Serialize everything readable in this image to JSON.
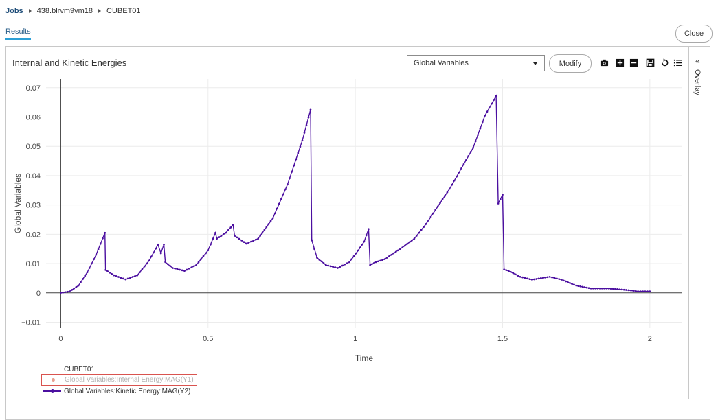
{
  "breadcrumb": {
    "jobs": "Jobs",
    "job_id": "438.blrvm9vm18",
    "model": "CUBET01"
  },
  "tabs": {
    "results": "Results"
  },
  "header": {
    "close_label": "Close"
  },
  "toolbar": {
    "variable_select": "Global Variables",
    "modify_label": "Modify",
    "icons": [
      "camera-icon",
      "zoom-in-icon",
      "zoom-out-icon",
      "save-icon",
      "reset-icon",
      "legend-list-icon"
    ]
  },
  "overlay": {
    "chevron": "«",
    "label": "Overlay"
  },
  "legend": {
    "title": "CUBET01",
    "items": [
      {
        "label": "Global Variables:Internal Energy:MAG(Y1)",
        "color": "#e8a090",
        "hidden": true
      },
      {
        "label": "Global Variables:Kinetic Energy:MAG(Y2)",
        "color": "#4b0fa0",
        "hidden": false
      }
    ]
  },
  "chart_data": {
    "type": "line",
    "title": "Internal and Kinetic Energies",
    "xlabel": "Time",
    "ylabel": "Global Variables",
    "xlim": [
      -0.05,
      2.11
    ],
    "ylim": [
      -0.012,
      0.073
    ],
    "xticks": [
      0,
      0.5,
      1,
      1.5,
      2
    ],
    "xtick_labels": [
      "0",
      "0.5",
      "1",
      "1.5",
      "2"
    ],
    "yticks": [
      -0.01,
      0,
      0.01,
      0.02,
      0.03,
      0.04,
      0.05,
      0.06,
      0.07
    ],
    "ytick_labels": [
      "−0.01",
      "0",
      "0.01",
      "0.02",
      "0.03",
      "0.04",
      "0.05",
      "0.06",
      "0.07"
    ],
    "grid": true,
    "series": [
      {
        "name": "Global Variables:Internal Energy:MAG(Y1)",
        "color": "#e8a090",
        "x": [
          0,
          2
        ],
        "y": [
          0,
          0
        ]
      },
      {
        "name": "Global Variables:Kinetic Energy:MAG(Y2)",
        "color": "#4b0fa0",
        "x": [
          0,
          0.03,
          0.06,
          0.09,
          0.12,
          0.15,
          0.152,
          0.18,
          0.22,
          0.26,
          0.3,
          0.33,
          0.34,
          0.35,
          0.355,
          0.38,
          0.42,
          0.46,
          0.5,
          0.525,
          0.53,
          0.56,
          0.585,
          0.59,
          0.63,
          0.67,
          0.72,
          0.77,
          0.82,
          0.848,
          0.852,
          0.87,
          0.9,
          0.94,
          0.98,
          1.01,
          1.03,
          1.045,
          1.05,
          1.07,
          1.1,
          1.13,
          1.16,
          1.2,
          1.24,
          1.28,
          1.32,
          1.36,
          1.4,
          1.44,
          1.478,
          1.485,
          1.5,
          1.505,
          1.52,
          1.56,
          1.6,
          1.66,
          1.7,
          1.75,
          1.8,
          1.86,
          1.92,
          1.96,
          2.0
        ],
        "y": [
          0,
          0.0005,
          0.0025,
          0.007,
          0.013,
          0.0205,
          0.0078,
          0.006,
          0.0046,
          0.006,
          0.011,
          0.0165,
          0.0135,
          0.0165,
          0.0105,
          0.0085,
          0.0075,
          0.0095,
          0.0145,
          0.0205,
          0.0185,
          0.0205,
          0.0232,
          0.0195,
          0.0168,
          0.0185,
          0.0255,
          0.037,
          0.052,
          0.0625,
          0.018,
          0.012,
          0.0095,
          0.0085,
          0.0105,
          0.0145,
          0.0175,
          0.0218,
          0.0095,
          0.0105,
          0.0115,
          0.0135,
          0.0155,
          0.0185,
          0.0235,
          0.0295,
          0.0355,
          0.0425,
          0.0495,
          0.0605,
          0.0672,
          0.0305,
          0.0335,
          0.008,
          0.0075,
          0.0055,
          0.0045,
          0.0055,
          0.0045,
          0.0025,
          0.0015,
          0.0015,
          0.001,
          0.0005,
          0.0005
        ]
      }
    ]
  }
}
